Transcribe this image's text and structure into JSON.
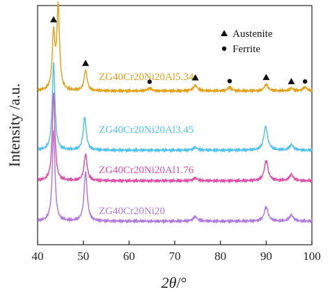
{
  "chart_data": {
    "type": "line",
    "xlabel_symbol": "2θ",
    "xlabel_unit": "/°",
    "ylabel": "Intensity /a.u.",
    "xlim": [
      40,
      100
    ],
    "xticks": [
      40,
      50,
      60,
      70,
      80,
      90,
      100
    ],
    "legend": {
      "placement": "top-right",
      "entries": [
        {
          "marker": "triangle",
          "label": "Austenite"
        },
        {
          "marker": "circle",
          "label": "Ferrite"
        }
      ]
    },
    "series": [
      {
        "name": "ZG40Cr20Ni20Al5.34",
        "color": "#e3a21a",
        "baseline": 0.06,
        "peaks": [
          [
            43.5,
            0.58,
            0.35
          ],
          [
            44.5,
            0.88,
            0.35
          ],
          [
            50.5,
            0.22,
            0.4
          ],
          [
            64.5,
            0.03,
            0.5
          ],
          [
            74.5,
            0.06,
            0.55
          ],
          [
            82.0,
            0.04,
            0.5
          ],
          [
            90.0,
            0.07,
            0.5
          ],
          [
            95.5,
            0.03,
            0.5
          ],
          [
            98.5,
            0.04,
            0.5
          ]
        ],
        "markers": [
          {
            "x": 43.5,
            "type": "triangle"
          },
          {
            "x": 44.5,
            "type": "circle"
          },
          {
            "x": 50.5,
            "type": "triangle"
          },
          {
            "x": 64.5,
            "type": "circle"
          },
          {
            "x": 74.5,
            "type": "triangle"
          },
          {
            "x": 82.0,
            "type": "circle"
          },
          {
            "x": 90.0,
            "type": "triangle"
          },
          {
            "x": 95.5,
            "type": "triangle"
          },
          {
            "x": 98.5,
            "type": "circle"
          }
        ]
      },
      {
        "name": "ZG40Cr20Ni20Al3.45",
        "color": "#4fc3f0",
        "baseline": 0.06,
        "peaks": [
          [
            43.5,
            0.95,
            0.35
          ],
          [
            50.3,
            0.36,
            0.4
          ],
          [
            74.5,
            0.03,
            0.55
          ],
          [
            89.9,
            0.26,
            0.5
          ],
          [
            95.5,
            0.06,
            0.5
          ]
        ]
      },
      {
        "name": "ZG40Cr20Ni20Al1.76",
        "color": "#e24fa8",
        "baseline": 0.06,
        "peaks": [
          [
            43.5,
            0.95,
            0.35
          ],
          [
            50.5,
            0.29,
            0.4
          ],
          [
            74.5,
            0.03,
            0.55
          ],
          [
            90.0,
            0.22,
            0.5
          ],
          [
            95.5,
            0.07,
            0.5
          ]
        ]
      },
      {
        "name": "ZG40Cr20Ni20",
        "color": "#b07ae0",
        "baseline": 0.06,
        "peaks": [
          [
            43.5,
            1.0,
            0.35
          ],
          [
            50.5,
            0.55,
            0.4
          ],
          [
            74.5,
            0.05,
            0.55
          ],
          [
            90.0,
            0.16,
            0.5
          ],
          [
            95.5,
            0.07,
            0.5
          ]
        ]
      }
    ]
  }
}
